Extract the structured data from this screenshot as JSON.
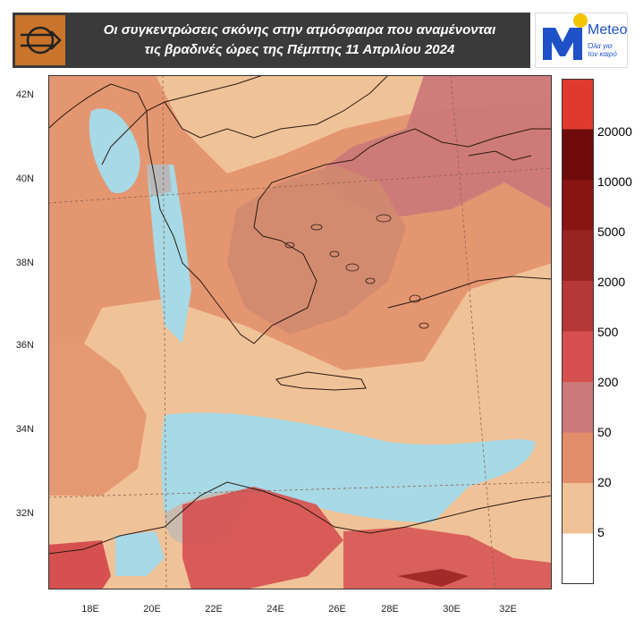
{
  "title": {
    "line1": "Οι συγκεντρώσεις σκόνης στην ατμόσφαιρα που αναμένονται",
    "line2": "τις βραδινές ώρες της Πέμπτης 11 Απριλίου 2024"
  },
  "logo": {
    "word": "Meteo",
    "tagline1": "Όλα για",
    "tagline2": "τον καιρό",
    "letter": "M"
  },
  "latitude_labels": [
    "42N",
    "40N",
    "38N",
    "36N",
    "34N",
    "32N"
  ],
  "longitude_labels": [
    "18E",
    "20E",
    "22E",
    "24E",
    "26E",
    "28E",
    "30E",
    "32E"
  ],
  "colorbar": {
    "labels": [
      "20000",
      "10000",
      "5000",
      "2000",
      "500",
      "200",
      "50",
      "20",
      "5"
    ],
    "colors": [
      "#e03a2e",
      "#6e0a0a",
      "#8a1414",
      "#9a2424",
      "#b53838",
      "#d65050",
      "#cc7878",
      "#e28e6a",
      "#f0c298",
      "#ffffff"
    ]
  },
  "map_colors": {
    "low": "#f0c298",
    "medium": "#e28e6a",
    "high": "#cc7878",
    "very_high": "#d65050",
    "clean": "#a7d9e6",
    "grey": "#b8b8b8"
  }
}
